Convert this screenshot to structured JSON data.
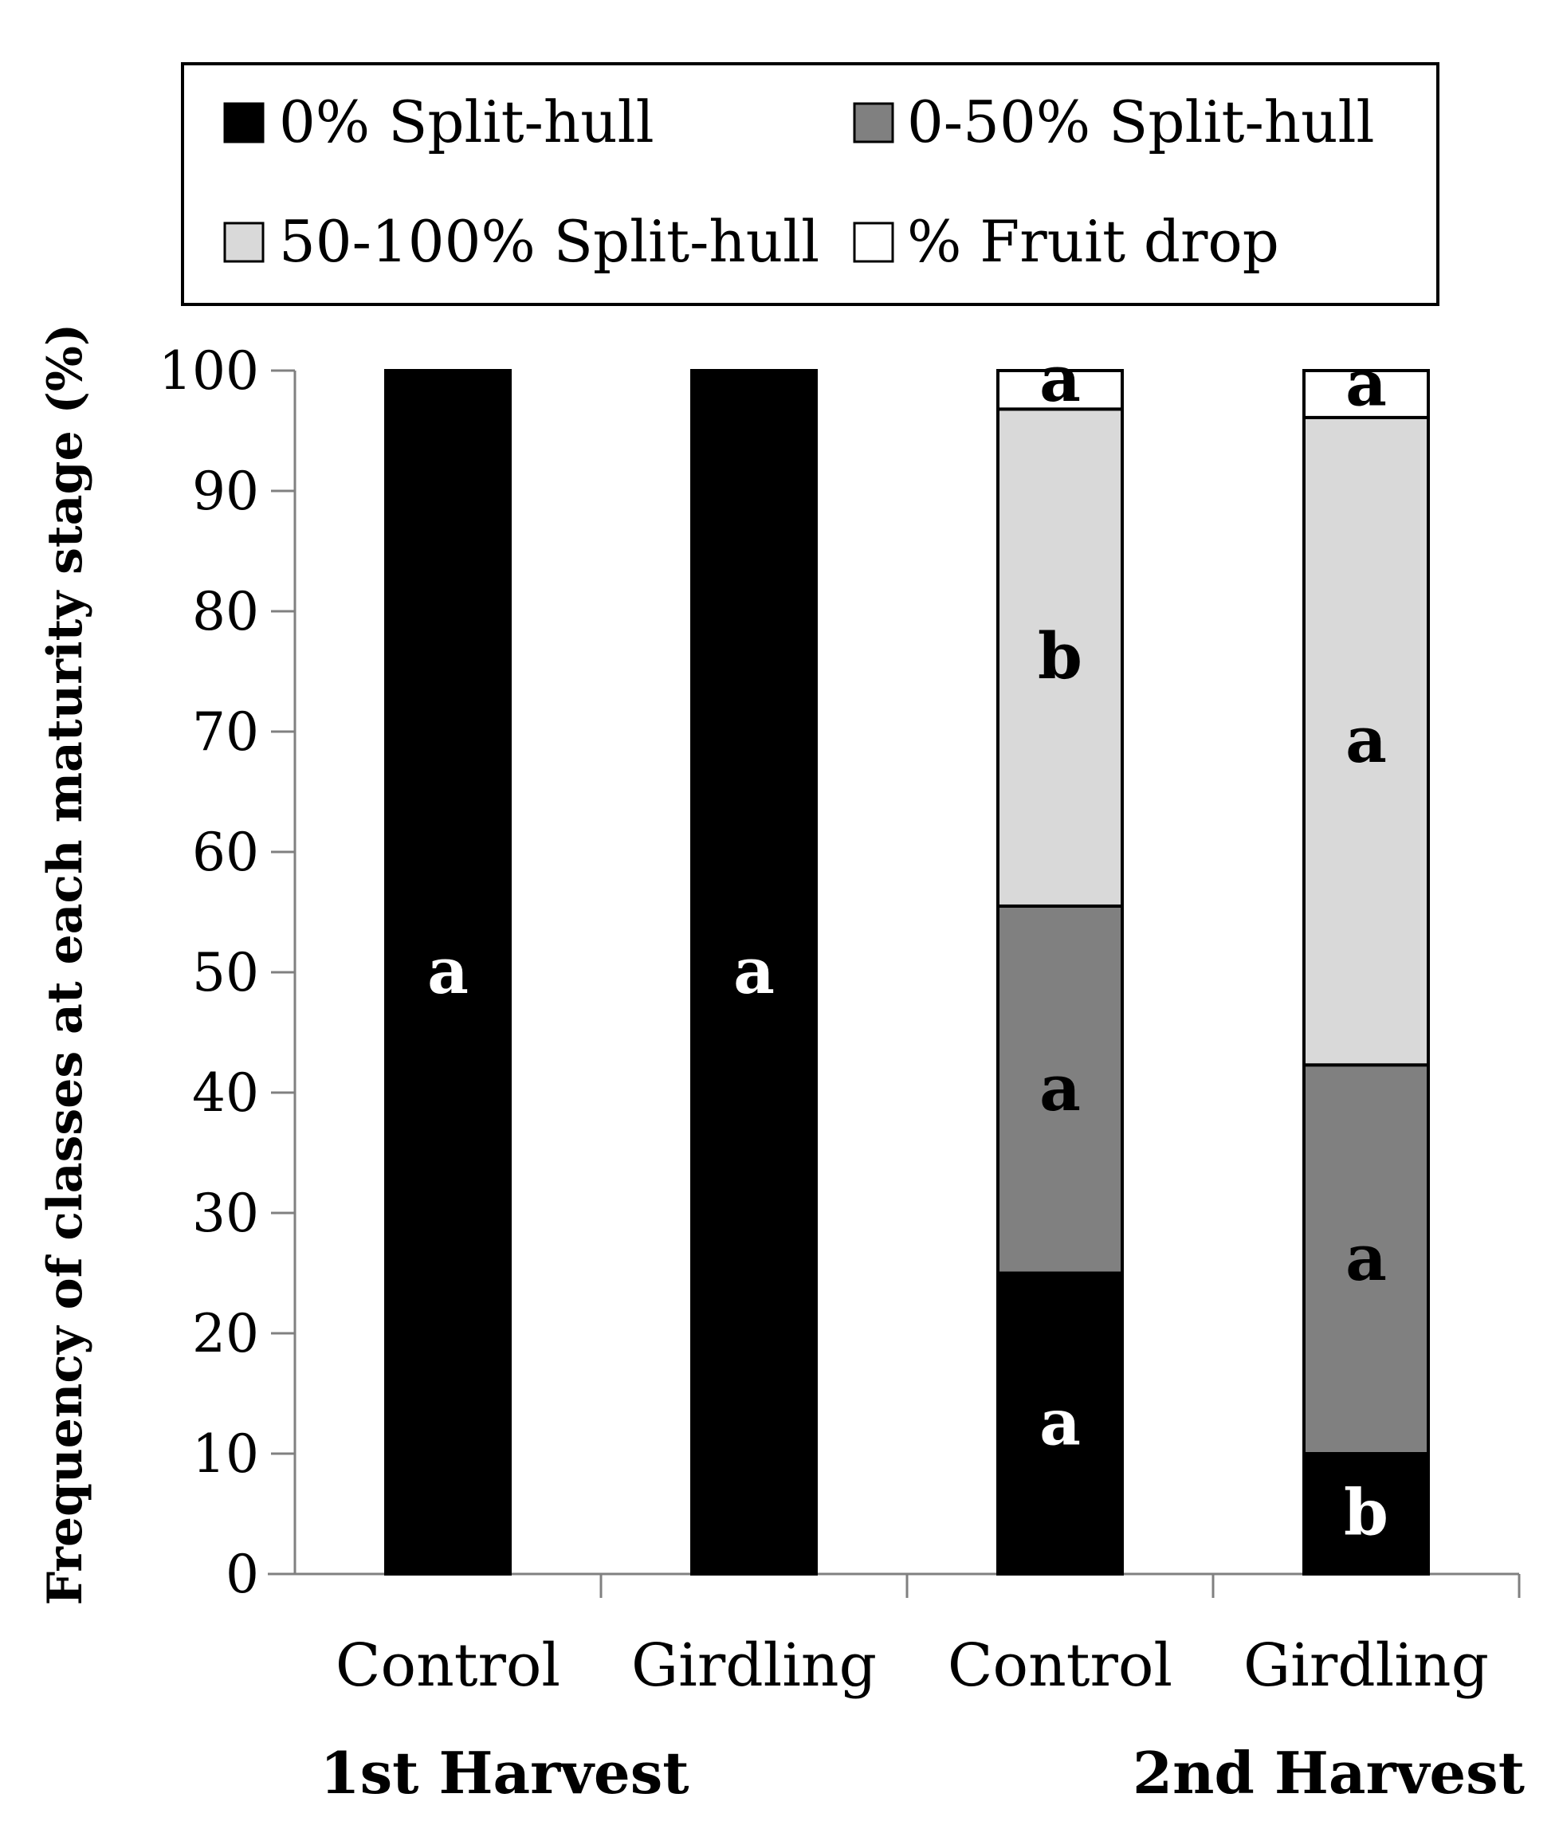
{
  "chart_data": {
    "type": "bar",
    "stacked": true,
    "title": "",
    "xlabel": "",
    "ylabel": "Frequency of classes at each maturity stage (%)",
    "ylim": [
      0,
      100
    ],
    "yticks": [
      0,
      10,
      20,
      30,
      40,
      50,
      60,
      70,
      80,
      90,
      100
    ],
    "categories": [
      "Control",
      "Girdling",
      "Control",
      "Girdling"
    ],
    "groups": [
      {
        "label": "1st Harvest",
        "categories": [
          0,
          1
        ]
      },
      {
        "label": "2nd Harvest",
        "categories": [
          2,
          3
        ]
      }
    ],
    "legend_position": "top",
    "series": [
      {
        "name": "0% Split-hull",
        "color": "#000000",
        "values": [
          100,
          100,
          25,
          10
        ],
        "letters": [
          "a",
          "a",
          "a",
          "b"
        ]
      },
      {
        "name": "0-50% Split-hull",
        "color": "#808080",
        "values": [
          0,
          0,
          30.5,
          32.3
        ],
        "letters": [
          "",
          "",
          "a",
          "a"
        ]
      },
      {
        "name": "50-100% Split-hull",
        "color": "#d9d9d9",
        "values": [
          0,
          0,
          41.3,
          53.8
        ],
        "letters": [
          "",
          "",
          "b",
          "a"
        ]
      },
      {
        "name": "% Fruit drop",
        "color": "#ffffff",
        "values": [
          0,
          0,
          3.2,
          3.9
        ],
        "letters": [
          "",
          "",
          "a",
          "a"
        ]
      }
    ]
  }
}
